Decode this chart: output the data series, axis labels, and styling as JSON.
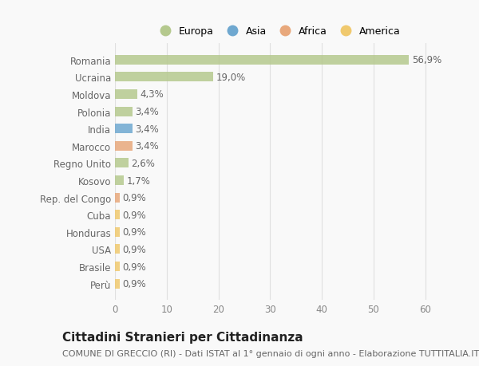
{
  "categories": [
    "Romania",
    "Ucraina",
    "Moldova",
    "Polonia",
    "India",
    "Marocco",
    "Regno Unito",
    "Kosovo",
    "Rep. del Congo",
    "Cuba",
    "Honduras",
    "USA",
    "Brasile",
    "Perù"
  ],
  "values": [
    56.9,
    19.0,
    4.3,
    3.4,
    3.4,
    3.4,
    2.6,
    1.7,
    0.9,
    0.9,
    0.9,
    0.9,
    0.9,
    0.9
  ],
  "labels": [
    "56,9%",
    "19,0%",
    "4,3%",
    "3,4%",
    "3,4%",
    "3,4%",
    "2,6%",
    "1,7%",
    "0,9%",
    "0,9%",
    "0,9%",
    "0,9%",
    "0,9%",
    "0,9%"
  ],
  "colors": [
    "#b5c98e",
    "#b5c98e",
    "#b5c98e",
    "#b5c98e",
    "#6fa8d0",
    "#e8a87c",
    "#b5c98e",
    "#b5c98e",
    "#e8a87c",
    "#f0c96e",
    "#f0c96e",
    "#f0c96e",
    "#f0c96e",
    "#f0c96e"
  ],
  "legend_labels": [
    "Europa",
    "Asia",
    "Africa",
    "America"
  ],
  "legend_colors": [
    "#b5c98e",
    "#6fa8d0",
    "#e8a87c",
    "#f0c96e"
  ],
  "title": "Cittadini Stranieri per Cittadinanza",
  "subtitle": "COMUNE DI GRECCIO (RI) - Dati ISTAT al 1° gennaio di ogni anno - Elaborazione TUTTITALIA.IT",
  "xlim": [
    0,
    63
  ],
  "xticks": [
    0,
    10,
    20,
    30,
    40,
    50,
    60
  ],
  "background_color": "#f9f9f9",
  "grid_color": "#e0e0e0",
  "bar_height": 0.55,
  "title_fontsize": 11,
  "subtitle_fontsize": 8,
  "tick_fontsize": 8.5,
  "label_fontsize": 8.5
}
